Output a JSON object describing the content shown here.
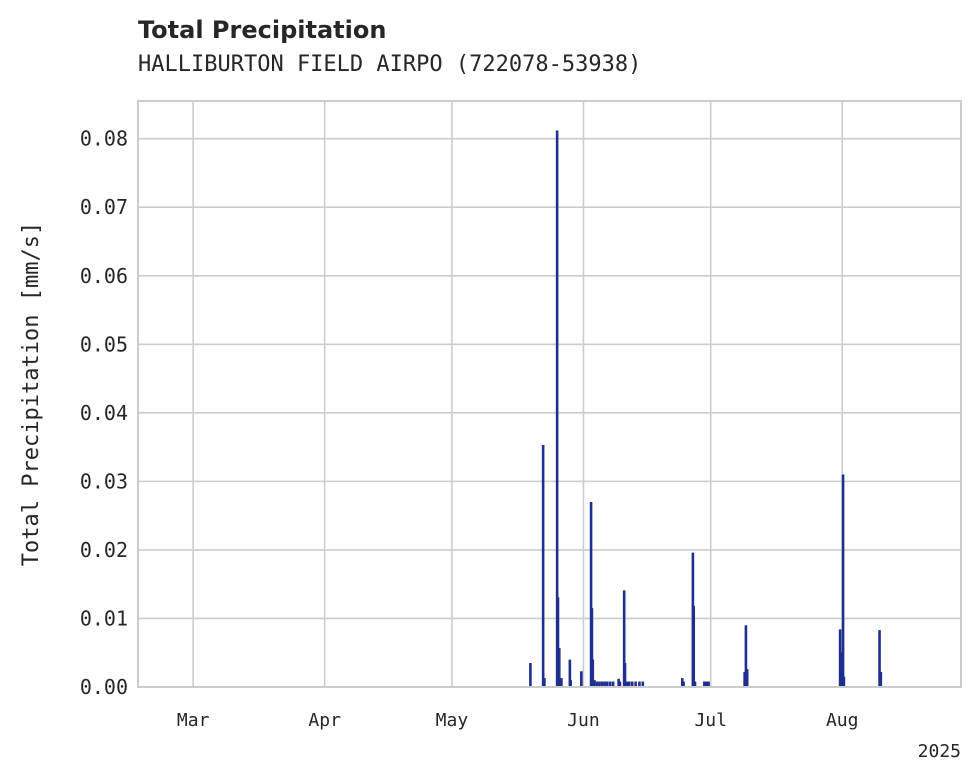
{
  "chart_data": {
    "type": "bar",
    "title": "Total Precipitation",
    "subtitle": "HALLIBURTON FIELD AIRPO (722078-53938)",
    "xlabel": "",
    "ylabel": "Total Precipitation [mm/s]",
    "ylim": [
      0,
      0.0855
    ],
    "xlim_day": [
      0,
      194
    ],
    "y_ticks": [
      "0.00",
      "0.01",
      "0.02",
      "0.03",
      "0.04",
      "0.05",
      "0.06",
      "0.07",
      "0.08"
    ],
    "y_tick_values": [
      0,
      0.01,
      0.02,
      0.03,
      0.04,
      0.05,
      0.06,
      0.07,
      0.08
    ],
    "x_ticks": [
      {
        "label": "Mar",
        "day": 13
      },
      {
        "label": "Apr",
        "day": 44
      },
      {
        "label": "May",
        "day": 74
      },
      {
        "label": "Jun",
        "day": 105
      },
      {
        "label": "Jul",
        "day": 135
      },
      {
        "label": "Aug",
        "day": 166
      }
    ],
    "x_offset_label": "2025",
    "grid": true,
    "series_color": "#1f2f8f",
    "series": [
      {
        "name": "Total Precipitation",
        "points": [
          [
            92.5,
            0.0035
          ],
          [
            95.5,
            0.0353
          ],
          [
            95.8,
            0.0013
          ],
          [
            98.8,
            0.0812
          ],
          [
            99.0,
            0.0131
          ],
          [
            99.3,
            0.0057
          ],
          [
            99.8,
            0.0013
          ],
          [
            101.8,
            0.004
          ],
          [
            102.0,
            0.001
          ],
          [
            104.5,
            0.0023
          ],
          [
            106.8,
            0.027
          ],
          [
            107.0,
            0.0115
          ],
          [
            107.2,
            0.004
          ],
          [
            107.6,
            0.001
          ],
          [
            108.2,
            0.0008
          ],
          [
            108.8,
            0.0008
          ],
          [
            109.4,
            0.0008
          ],
          [
            110.0,
            0.0008
          ],
          [
            110.6,
            0.0008
          ],
          [
            111.3,
            0.0008
          ],
          [
            112.0,
            0.0008
          ],
          [
            113.3,
            0.0012
          ],
          [
            113.6,
            0.0008
          ],
          [
            114.6,
            0.0141
          ],
          [
            114.8,
            0.0035
          ],
          [
            115.2,
            0.0008
          ],
          [
            115.8,
            0.0008
          ],
          [
            116.5,
            0.0008
          ],
          [
            117.3,
            0.0008
          ],
          [
            118.2,
            0.0008
          ],
          [
            119.0,
            0.0008
          ],
          [
            128.3,
            0.0013
          ],
          [
            128.6,
            0.0008
          ],
          [
            130.8,
            0.0196
          ],
          [
            131.0,
            0.0118
          ],
          [
            131.3,
            0.0008
          ],
          [
            133.5,
            0.0008
          ],
          [
            134.0,
            0.0008
          ],
          [
            134.5,
            0.0008
          ],
          [
            143.0,
            0.0022
          ],
          [
            143.3,
            0.009
          ],
          [
            143.6,
            0.0026
          ],
          [
            165.5,
            0.0084
          ],
          [
            165.8,
            0.005
          ],
          [
            166.2,
            0.031
          ],
          [
            166.4,
            0.0015
          ],
          [
            174.8,
            0.0083
          ],
          [
            175.1,
            0.0022
          ]
        ]
      }
    ]
  }
}
